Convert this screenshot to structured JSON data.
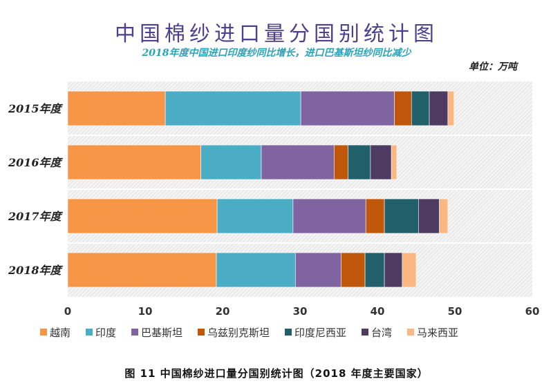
{
  "chart_data": {
    "type": "bar",
    "orientation": "horizontal",
    "stacked": true,
    "title": "中国棉纱进口量分国别统计图",
    "subtitle": "2018年度中国进口印度纱同比增长，进口巴基斯坦纱同比减少",
    "unit": "单位：万吨",
    "caption": "图 11    中国棉纱进口量分国别统计图（2018 年度主要国家）",
    "categories": [
      "2015年度",
      "2016年度",
      "2017年度",
      "2018年度"
    ],
    "xlim": [
      0,
      60
    ],
    "xticks": [
      0,
      10,
      20,
      30,
      40,
      50,
      60
    ],
    "legend_position": "bottom",
    "series": [
      {
        "name": "越南",
        "color": "#f79646",
        "values": [
          12.6,
          17.2,
          19.3,
          19.2
        ]
      },
      {
        "name": "印度",
        "color": "#4bacc6",
        "values": [
          17.5,
          7.8,
          9.8,
          10.2
        ]
      },
      {
        "name": "巴基斯坦",
        "color": "#8064a2",
        "values": [
          12.1,
          9.4,
          9.4,
          5.9
        ]
      },
      {
        "name": "乌兹别克斯坦",
        "color": "#c0580b",
        "values": [
          2.2,
          1.8,
          2.4,
          3.1
        ]
      },
      {
        "name": "印度尼西亚",
        "color": "#215f6b",
        "values": [
          2.3,
          2.9,
          4.4,
          2.5
        ]
      },
      {
        "name": "台湾",
        "color": "#4d3b62",
        "values": [
          2.4,
          2.7,
          2.7,
          2.3
        ]
      },
      {
        "name": "马来西亚",
        "color": "#fab782",
        "values": [
          0.8,
          0.7,
          1.1,
          1.8
        ]
      }
    ]
  }
}
